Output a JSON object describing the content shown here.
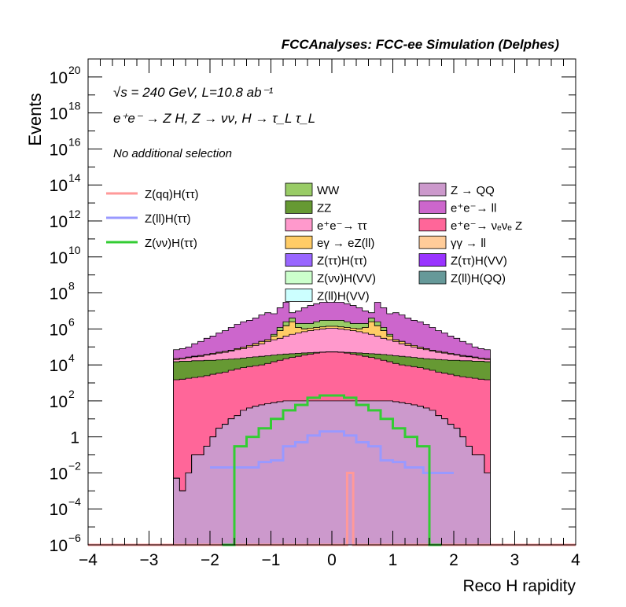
{
  "header": {
    "title": "FCCAnalyses: FCC-ee Simulation (Delphes)"
  },
  "annotations": {
    "energy_lumi": "√s = 240 GeV, L=10.8 ab⁻¹",
    "process": "e⁺e⁻ → Z H, Z → νν, H → τ_L τ_L",
    "selection": "No additional selection"
  },
  "colors": {
    "WW": "#99cc66",
    "ZZ": "#669933",
    "ee_tautau": "#ff99cc",
    "egamma": "#ffcc66",
    "Ztautau_Htautau": "#9966ff",
    "Znunu_HVV": "#ccffcc",
    "Zll_HVV": "#ccffff",
    "Z_QQ": "#cc99cc",
    "ee_ll": "#cc66cc",
    "ee_nunuZ": "#ff6699",
    "gammagamma_ll": "#ffcc99",
    "Ztautau_HVV": "#9933ff",
    "Zll_HQQ": "#669999",
    "sig_qq": "#ff9999",
    "sig_ll": "#9999ff",
    "sig_nunu": "#33cc33"
  },
  "chart_data": {
    "type": "area",
    "xlabel": "Reco H rapidity",
    "ylabel": "Events",
    "xlim": [
      -4,
      4
    ],
    "ylim": [
      1e-06,
      1e+21
    ],
    "log_y": true,
    "x_ticks": [
      "−4",
      "−3",
      "−2",
      "−1",
      "0",
      "1",
      "2",
      "3",
      "4"
    ],
    "y_ticks": [
      {
        "base": "10",
        "exp": "−6",
        "value": 1e-06
      },
      {
        "base": "10",
        "exp": "−4",
        "value": 0.0001
      },
      {
        "base": "10",
        "exp": "−2",
        "value": 0.01
      },
      {
        "base": "1",
        "exp": "",
        "value": 1
      },
      {
        "base": "10",
        "exp": "2",
        "value": 100.0
      },
      {
        "base": "10",
        "exp": "4",
        "value": 10000.0
      },
      {
        "base": "10",
        "exp": "6",
        "value": 1000000.0
      },
      {
        "base": "10",
        "exp": "8",
        "value": 100000000.0
      },
      {
        "base": "10",
        "exp": "10",
        "value": 10000000000.0
      },
      {
        "base": "10",
        "exp": "12",
        "value": 1000000000000.0
      },
      {
        "base": "10",
        "exp": "14",
        "value": 100000000000000.0
      },
      {
        "base": "10",
        "exp": "16",
        "value": 1e+16
      },
      {
        "base": "10",
        "exp": "18",
        "value": 1e+18
      },
      {
        "base": "10",
        "exp": "20",
        "value": 1e+20
      }
    ],
    "bin_edges": [
      -2.6,
      -2.5,
      -2.4,
      -2.3,
      -2.2,
      -2.1,
      -2.0,
      -1.9,
      -1.8,
      -1.7,
      -1.6,
      -1.5,
      -1.4,
      -1.3,
      -1.2,
      -1.1,
      -1.0,
      -0.9,
      -0.8,
      -0.7,
      -0.6,
      -0.5,
      -0.4,
      -0.3,
      -0.2,
      -0.1,
      0.0,
      0.1,
      0.2,
      0.3,
      0.4,
      0.5,
      0.6,
      0.7,
      0.8,
      0.9,
      1.0,
      1.1,
      1.2,
      1.3,
      1.4,
      1.5,
      1.6,
      1.7,
      1.8,
      1.9,
      2.0,
      2.1,
      2.2,
      2.3,
      2.4,
      2.5,
      2.6
    ],
    "stack_order": [
      "Z_QQ",
      "Znunu_HVV",
      "Zll_HVV",
      "Ztautau_Htautau",
      "Ztautau_HVV",
      "Zll_HQQ",
      "ee_nunuZ",
      "ZZ",
      "ee_tautau",
      "egamma",
      "gammagamma_ll",
      "WW",
      "ee_ll"
    ],
    "stack_cumulative": {
      "Z_QQ": [
        0.005,
        0.001,
        0.01,
        0.1,
        0.1,
        0.3,
        1,
        3,
        5,
        10,
        15,
        30,
        40,
        50,
        60,
        70,
        80,
        90,
        100,
        100,
        100,
        100,
        100,
        100,
        100,
        100,
        100,
        100,
        100,
        100,
        100,
        100,
        100,
        100,
        100,
        100,
        90,
        80,
        70,
        60,
        50,
        40,
        30,
        15,
        10,
        5,
        3,
        1,
        0.3,
        0.1,
        0.1,
        0.01
      ],
      "Znunu_HVV": [
        0.005,
        0.001,
        0.01,
        0.1,
        0.1,
        0.3,
        1,
        3,
        5,
        10,
        15,
        30,
        40,
        50,
        60,
        70,
        80,
        90,
        100,
        100,
        100,
        100,
        100,
        100,
        100,
        100,
        100,
        100,
        100,
        100,
        100,
        100,
        100,
        100,
        100,
        100,
        90,
        80,
        70,
        60,
        50,
        40,
        30,
        15,
        10,
        5,
        3,
        1,
        0.3,
        0.1,
        0.1,
        0.01
      ],
      "Zll_HVV": [
        0.005,
        0.001,
        0.01,
        0.1,
        0.1,
        0.3,
        1,
        3,
        5,
        10,
        15,
        30,
        40,
        50,
        60,
        70,
        80,
        90,
        100,
        100,
        100,
        100,
        100,
        100,
        100,
        100,
        100,
        100,
        100,
        100,
        100,
        100,
        100,
        100,
        100,
        100,
        90,
        80,
        70,
        60,
        50,
        40,
        30,
        15,
        10,
        5,
        3,
        1,
        0.3,
        0.1,
        0.1,
        0.01
      ],
      "Ztautau_Htautau": [
        0.005,
        0.001,
        0.01,
        0.1,
        0.1,
        0.3,
        1,
        3,
        5,
        10,
        15,
        30,
        40,
        50,
        60,
        70,
        80,
        90,
        100,
        100,
        100,
        100,
        100,
        100,
        100,
        100,
        100,
        100,
        100,
        100,
        100,
        100,
        100,
        100,
        100,
        100,
        90,
        80,
        70,
        60,
        50,
        40,
        30,
        15,
        10,
        5,
        3,
        1,
        0.3,
        0.1,
        0.1,
        0.01
      ],
      "Ztautau_HVV": [
        0.005,
        0.001,
        0.01,
        0.1,
        0.1,
        0.3,
        1,
        3,
        5,
        10,
        15,
        30,
        40,
        50,
        60,
        70,
        80,
        90,
        100,
        100,
        100,
        100,
        100,
        100,
        100,
        100,
        100,
        100,
        100,
        100,
        100,
        100,
        100,
        100,
        100,
        100,
        90,
        80,
        70,
        60,
        50,
        40,
        30,
        15,
        10,
        5,
        3,
        1,
        0.3,
        0.1,
        0.1,
        0.01
      ],
      "Zll_HQQ": [
        0.005,
        0.001,
        0.01,
        0.1,
        0.1,
        0.3,
        1,
        3,
        5,
        10,
        15,
        30,
        40,
        50,
        60,
        70,
        80,
        90,
        100,
        100,
        100,
        100,
        100,
        100,
        100,
        100,
        100,
        100,
        100,
        100,
        100,
        100,
        100,
        100,
        100,
        100,
        90,
        80,
        70,
        60,
        50,
        40,
        30,
        15,
        10,
        5,
        3,
        1,
        0.3,
        0.1,
        0.1,
        0.01
      ],
      "ee_nunuZ": [
        1500,
        1600,
        1800,
        2000,
        2200,
        2500,
        3000,
        3500,
        4000,
        5000,
        6000,
        7000,
        8000,
        9000,
        10000,
        12000,
        15000,
        18000,
        22000,
        26000,
        30000,
        35000,
        40000,
        45000,
        50000,
        52000,
        52000,
        50000,
        45000,
        40000,
        35000,
        30000,
        26000,
        22000,
        18000,
        15000,
        12000,
        10000,
        9000,
        8000,
        7000,
        6000,
        5000,
        4000,
        3500,
        3000,
        2500,
        2200,
        2000,
        1800,
        1600,
        1500
      ],
      "ZZ": [
        15000,
        16000,
        16000,
        17000,
        17000,
        18000,
        18000,
        19000,
        20000,
        21000,
        22000,
        24000,
        26000,
        28000,
        30000,
        32000,
        35000,
        38000,
        40000,
        42000,
        44000,
        46000,
        48000,
        50000,
        52000,
        54000,
        54000,
        52000,
        50000,
        48000,
        46000,
        44000,
        42000,
        40000,
        38000,
        35000,
        32000,
        30000,
        28000,
        26000,
        24000,
        22000,
        21000,
        20000,
        19000,
        18000,
        18000,
        17000,
        17000,
        16000,
        16000,
        15000
      ],
      "ee_tautau": [
        20000,
        22000,
        25000,
        28000,
        30000,
        35000,
        40000,
        45000,
        50000,
        60000,
        70000,
        80000,
        100000,
        120000,
        150000,
        200000,
        250000,
        300000,
        400000,
        500000,
        600000,
        700000,
        800000,
        900000,
        1000000,
        1100000,
        1100000,
        1000000,
        900000,
        800000,
        700000,
        600000,
        500000,
        400000,
        300000,
        250000,
        200000,
        150000,
        120000,
        100000,
        80000,
        70000,
        60000,
        50000,
        45000,
        40000,
        35000,
        30000,
        28000,
        25000,
        22000,
        20000
      ],
      "egamma": [
        22000,
        24000,
        27000,
        30000,
        33000,
        38000,
        44000,
        50000,
        56000,
        65000,
        80000,
        95000,
        120000,
        150000,
        200000,
        250000,
        400000,
        800000,
        1500000,
        2500000,
        1200000,
        1000000,
        1100000,
        1200000,
        1300000,
        1400000,
        1400000,
        1300000,
        1200000,
        1100000,
        1000000,
        1200000,
        2500000,
        1500000,
        800000,
        400000,
        250000,
        200000,
        150000,
        120000,
        95000,
        80000,
        65000,
        56000,
        50000,
        44000,
        38000,
        33000,
        30000,
        27000,
        24000,
        22000
      ],
      "gammagamma_ll": [
        22000,
        24000,
        27000,
        30000,
        33000,
        38000,
        44000,
        50000,
        56000,
        65000,
        80000,
        95000,
        120000,
        150000,
        200000,
        250000,
        400000,
        800000,
        1500000,
        2500000,
        1200000,
        1000000,
        1100000,
        1200000,
        1300000,
        1400000,
        1400000,
        1300000,
        1200000,
        1100000,
        1000000,
        1200000,
        2500000,
        1500000,
        800000,
        400000,
        250000,
        200000,
        150000,
        120000,
        95000,
        80000,
        65000,
        56000,
        50000,
        44000,
        38000,
        33000,
        30000,
        27000,
        24000,
        22000
      ],
      "WW": [
        22000,
        24000,
        27000,
        30000,
        33000,
        38000,
        44000,
        50000,
        56000,
        65000,
        80000,
        95000,
        120000,
        150000,
        200000,
        250000,
        500000,
        1200000,
        2500000,
        4000000,
        2000000,
        2000000,
        2000000,
        2500000,
        3000000,
        3000000,
        3000000,
        3000000,
        2500000,
        2000000,
        2000000,
        2000000,
        4000000,
        2500000,
        1200000,
        500000,
        250000,
        200000,
        150000,
        120000,
        95000,
        80000,
        65000,
        56000,
        50000,
        44000,
        38000,
        33000,
        30000,
        27000,
        24000,
        22000
      ],
      "ee_ll": [
        70000,
        80000,
        100000,
        150000,
        200000,
        300000,
        400000,
        600000,
        800000,
        1200000,
        1800000,
        2500000,
        3000000,
        4000000,
        6000000,
        8000000,
        7000000,
        15000000,
        30000000,
        8000000,
        10000000,
        15000000,
        20000000,
        25000000,
        30000000,
        30000000,
        30000000,
        30000000,
        25000000,
        20000000,
        15000000,
        10000000,
        8000000,
        30000000,
        15000000,
        7000000,
        8000000,
        6000000,
        4000000,
        3000000,
        2500000,
        1800000,
        1200000,
        800000,
        600000,
        400000,
        300000,
        200000,
        150000,
        100000,
        80000,
        70000
      ]
    },
    "legend_left": [
      {
        "name": "Z(qq)H(ττ)",
        "color": "#ff9999"
      },
      {
        "name": "Z(ll)H(ττ)",
        "color": "#9999ff"
      },
      {
        "name": "Z(νν)H(ττ)",
        "color": "#33cc33"
      }
    ],
    "legend_stack_col1": [
      {
        "name": "WW",
        "color": "#99cc66"
      },
      {
        "name": "ZZ",
        "color": "#669933"
      },
      {
        "name": "e⁺e⁻→ ττ",
        "color": "#ff99cc"
      },
      {
        "name": "eγ → eZ(ll)",
        "color": "#ffcc66"
      },
      {
        "name": "Z(ττ)H(ττ)",
        "color": "#9966ff"
      },
      {
        "name": "Z(νν)H(VV)",
        "color": "#ccffcc"
      },
      {
        "name": "Z(ll)H(VV)",
        "color": "#ccffff"
      }
    ],
    "legend_stack_col2": [
      {
        "name": "Z → QQ",
        "color": "#cc99cc"
      },
      {
        "name": "e⁺e⁻→ ll",
        "color": "#cc66cc"
      },
      {
        "name": "e⁺e⁻→ νₑνₑ Z",
        "color": "#ff6699"
      },
      {
        "name": "γγ → ll",
        "color": "#ffcc99"
      },
      {
        "name": "Z(ττ)H(VV)",
        "color": "#9933ff"
      },
      {
        "name": "Z(ll)H(QQ)",
        "color": "#669999"
      }
    ]
  }
}
